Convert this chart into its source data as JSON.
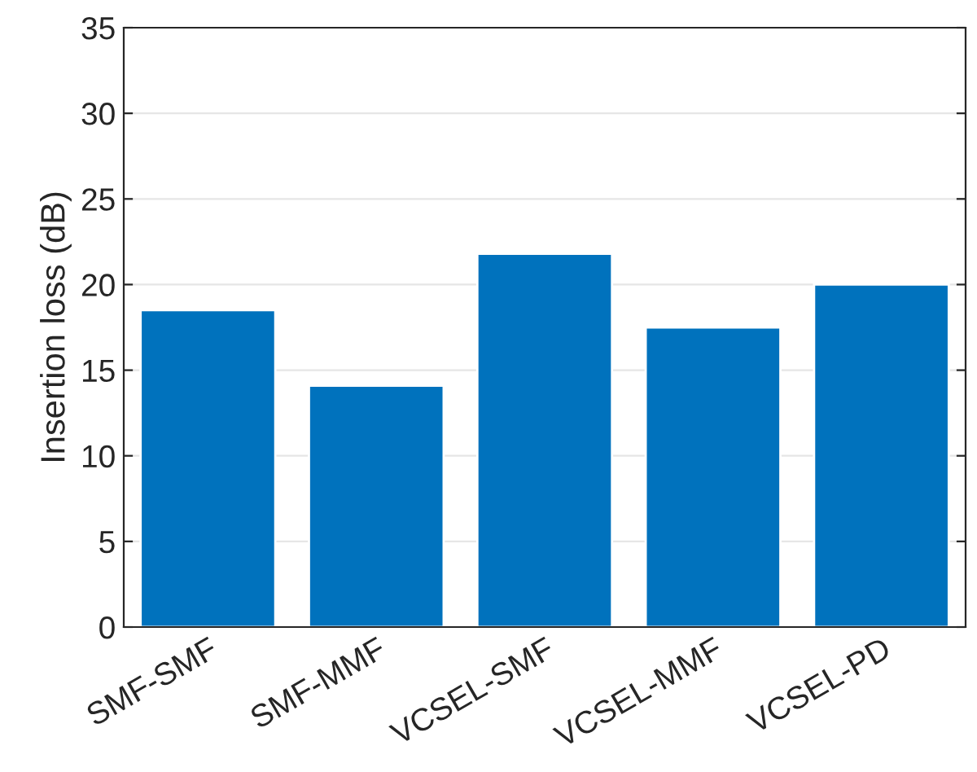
{
  "chart_data": {
    "type": "bar",
    "ylabel": "Insertion loss (dB)",
    "categories": [
      "SMF-SMF",
      "SMF-MMF",
      "VCSEL-SMF",
      "VCSEL-MMF",
      "VCSEL-PD"
    ],
    "values": [
      18.5,
      14.1,
      21.8,
      17.5,
      20.0
    ],
    "color": "#0072bd",
    "ylim": [
      0,
      35
    ],
    "yticks": [
      0,
      5,
      10,
      15,
      20,
      25,
      30,
      35
    ],
    "grid": "y"
  }
}
